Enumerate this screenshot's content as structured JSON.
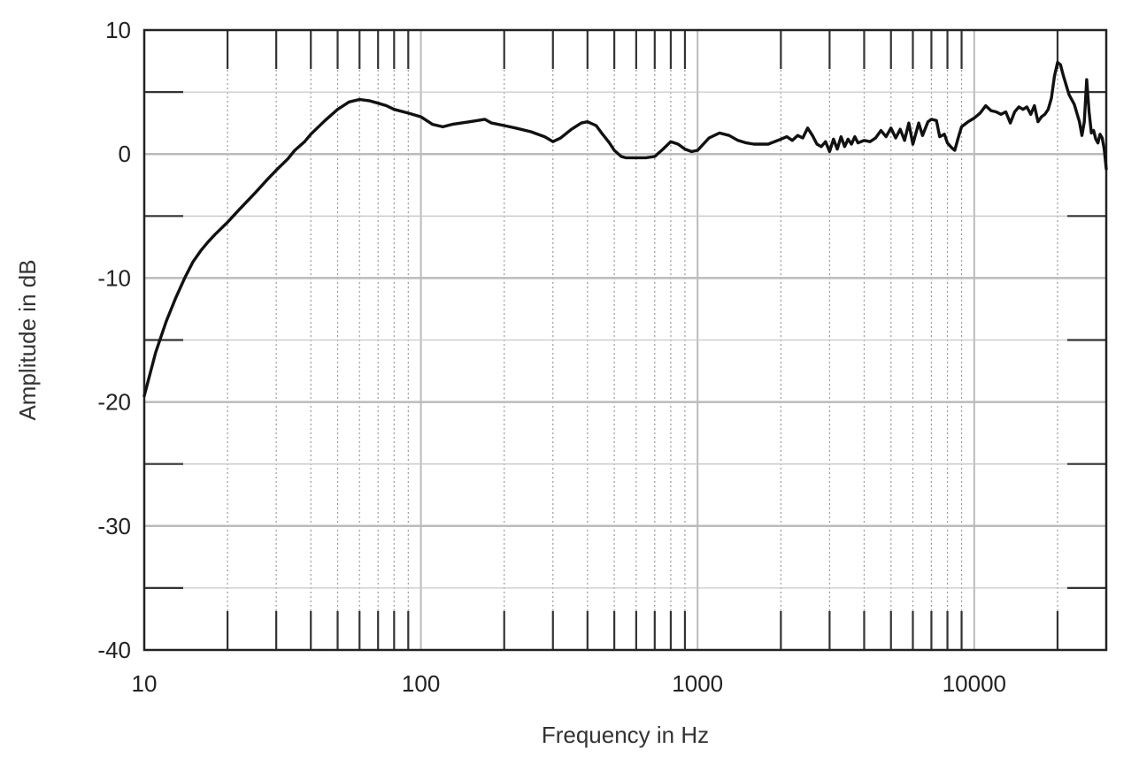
{
  "chart_data": {
    "type": "line",
    "title": "",
    "xlabel": "Frequency in Hz",
    "ylabel": "Amplitude in dB",
    "x_scale": "log",
    "xlim": [
      10,
      30000
    ],
    "ylim": [
      -40,
      10
    ],
    "x_ticks": [
      {
        "value": 10,
        "label": "10"
      },
      {
        "value": 100,
        "label": "100"
      },
      {
        "value": 1000,
        "label": "1000"
      },
      {
        "value": 10000,
        "label": "10000"
      }
    ],
    "y_ticks": [
      {
        "value": 10,
        "label": "10"
      },
      {
        "value": 0,
        "label": "0"
      },
      {
        "value": -10,
        "label": "-10"
      },
      {
        "value": -20,
        "label": "-20"
      },
      {
        "value": -30,
        "label": "-30"
      },
      {
        "value": -40,
        "label": "-40"
      }
    ],
    "grid": true,
    "legend": "none",
    "colors": {
      "line": "#111111",
      "major_grid": "#bbbbbb",
      "minor_grid": "#9a9a9a",
      "frame": "#222222"
    },
    "series": [
      {
        "x": [
          10,
          11,
          12,
          13,
          14,
          15,
          16,
          17,
          18,
          20,
          22,
          25,
          28,
          30,
          33,
          35,
          38,
          40,
          45,
          50,
          55,
          60,
          65,
          70,
          75,
          80,
          90,
          100,
          110,
          120,
          130,
          150,
          170,
          180,
          200,
          220,
          250,
          280,
          300,
          320,
          350,
          380,
          400,
          430,
          450,
          480,
          500,
          530,
          550,
          600,
          650,
          700,
          750,
          800,
          850,
          900,
          950,
          1000,
          1100,
          1200,
          1300,
          1400,
          1500,
          1600,
          1800,
          2000,
          2100,
          2200,
          2300,
          2400,
          2500,
          2600,
          2700,
          2800,
          2900,
          3000,
          3100,
          3200,
          3300,
          3400,
          3500,
          3600,
          3700,
          3800,
          4000,
          4200,
          4400,
          4600,
          4800,
          5000,
          5200,
          5400,
          5600,
          5800,
          6000,
          6300,
          6500,
          6800,
          7000,
          7300,
          7500,
          7800,
          8000,
          8300,
          8500,
          8800,
          9000,
          9500,
          10000,
          10500,
          11000,
          11500,
          12000,
          12500,
          13000,
          13500,
          14000,
          14500,
          15000,
          15500,
          16000,
          16500,
          17000,
          17500,
          18000,
          18500,
          19000,
          19500,
          20000,
          20500,
          21000,
          22000,
          23000,
          24000,
          24500,
          25000,
          25500,
          26000,
          26500,
          27000,
          27500,
          28000,
          28500,
          29000,
          29500,
          30000
        ],
        "y": [
          -19.5,
          -16.0,
          -13.5,
          -11.6,
          -10.0,
          -8.7,
          -7.8,
          -7.1,
          -6.5,
          -5.5,
          -4.5,
          -3.2,
          -2.0,
          -1.3,
          -0.4,
          0.3,
          1.0,
          1.6,
          2.7,
          3.6,
          4.2,
          4.4,
          4.3,
          4.1,
          3.9,
          3.6,
          3.3,
          3.0,
          2.4,
          2.2,
          2.4,
          2.6,
          2.8,
          2.5,
          2.3,
          2.1,
          1.8,
          1.4,
          1.0,
          1.3,
          2.0,
          2.5,
          2.6,
          2.3,
          1.7,
          0.9,
          0.3,
          -0.2,
          -0.3,
          -0.3,
          -0.3,
          -0.2,
          0.4,
          1.0,
          0.8,
          0.4,
          0.2,
          0.3,
          1.3,
          1.7,
          1.5,
          1.1,
          0.9,
          0.8,
          0.8,
          1.2,
          1.4,
          1.1,
          1.5,
          1.3,
          2.1,
          1.5,
          0.8,
          0.6,
          1.0,
          0.2,
          1.2,
          0.4,
          1.4,
          0.6,
          1.2,
          0.8,
          1.4,
          0.9,
          1.1,
          1.0,
          1.3,
          1.9,
          1.4,
          2.1,
          1.3,
          2.0,
          1.1,
          2.5,
          0.8,
          2.5,
          1.5,
          2.6,
          2.8,
          2.7,
          1.4,
          1.6,
          0.9,
          0.5,
          0.3,
          1.5,
          2.2,
          2.6,
          2.9,
          3.3,
          3.9,
          3.5,
          3.4,
          3.2,
          3.4,
          2.5,
          3.4,
          3.8,
          3.6,
          3.8,
          3.2,
          3.9,
          2.6,
          3.0,
          3.2,
          3.6,
          4.5,
          6.3,
          7.4,
          7.2,
          6.3,
          4.8,
          4.0,
          2.6,
          1.5,
          2.6,
          6.0,
          3.4,
          1.7,
          1.9,
          1.2,
          0.9,
          1.6,
          1.3,
          0.4,
          -1.2
        ]
      }
    ]
  }
}
